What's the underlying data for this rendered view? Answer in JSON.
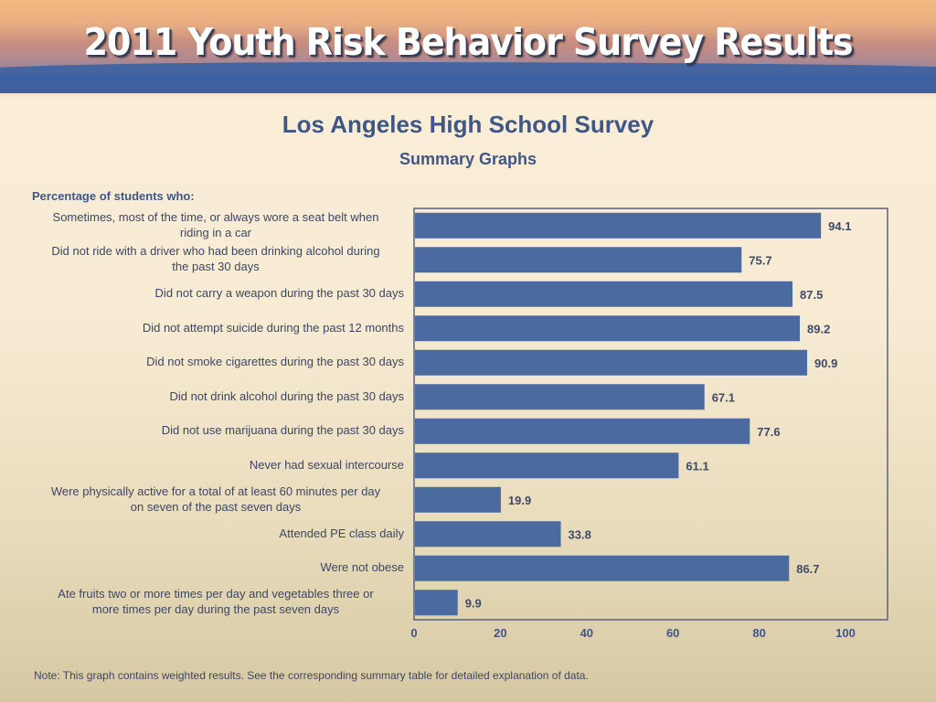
{
  "banner": {
    "title": "2011 Youth Risk Behavior Survey Results"
  },
  "header": {
    "title": "Los Angeles High School Survey",
    "subtitle": "Summary Graphs",
    "y_header": "Percentage of students who:"
  },
  "footer": {
    "note": "Note: This graph contains weighted results. See the corresponding summary table for detailed explanation of data."
  },
  "colors": {
    "bar": "#4a6aa0",
    "frame": "#5a6079",
    "text": "#3f5786"
  },
  "chart_data": {
    "type": "bar",
    "orientation": "horizontal",
    "title": "Los Angeles High School Survey",
    "subtitle": "Summary Graphs",
    "ylabel": "Percentage of students who:",
    "xlabel": "",
    "xlim": [
      0,
      110
    ],
    "xticks": [
      0,
      20,
      40,
      60,
      80,
      100
    ],
    "grid": false,
    "legend": "none",
    "categories": [
      "Sometimes, most of the time, or always wore a seat belt when riding in a car",
      "Did not ride with a driver who had been drinking alcohol during the past 30 days",
      "Did not carry a weapon during the past 30 days",
      "Did not attempt suicide during the past 12 months",
      "Did not smoke cigarettes during the past 30 days",
      "Did not drink alcohol during the past 30 days",
      "Did not use marijuana during the past 30 days",
      "Never had sexual intercourse",
      "Were physically active for a total of at least 60 minutes per day on seven of the past seven days",
      "Attended PE class daily",
      "Were not obese",
      "Ate fruits two or more times per day and vegetables three or more times per day during the past seven days"
    ],
    "category_lines": [
      [
        "Sometimes, most of the time, or always wore a seat belt when",
        "riding in a car"
      ],
      [
        "Did not ride with a driver who had been drinking alcohol during",
        "the past 30 days"
      ],
      [
        "Did not carry a weapon during the past 30 days"
      ],
      [
        "Did not attempt suicide during the past 12 months"
      ],
      [
        "Did not smoke cigarettes during the past 30 days"
      ],
      [
        "Did not drink alcohol during the past 30 days"
      ],
      [
        "Did not use marijuana during the past 30 days"
      ],
      [
        "Never had sexual intercourse"
      ],
      [
        "Were physically active for a total of at least 60 minutes per day",
        "on seven of the past seven days"
      ],
      [
        "Attended PE class daily"
      ],
      [
        "Were not obese"
      ],
      [
        "Ate fruits two or more times per day and vegetables three or",
        "more times per day during the past seven days"
      ]
    ],
    "values": [
      94.1,
      75.7,
      87.5,
      89.2,
      90.9,
      67.1,
      77.6,
      61.1,
      19.9,
      33.8,
      86.7,
      9.9
    ],
    "value_labels": [
      "94.1",
      "75.7",
      "87.5",
      "89.2",
      "90.9",
      "67.1",
      "77.6",
      "61.1",
      "19.9",
      "33.8",
      "86.7",
      "9.9"
    ]
  }
}
